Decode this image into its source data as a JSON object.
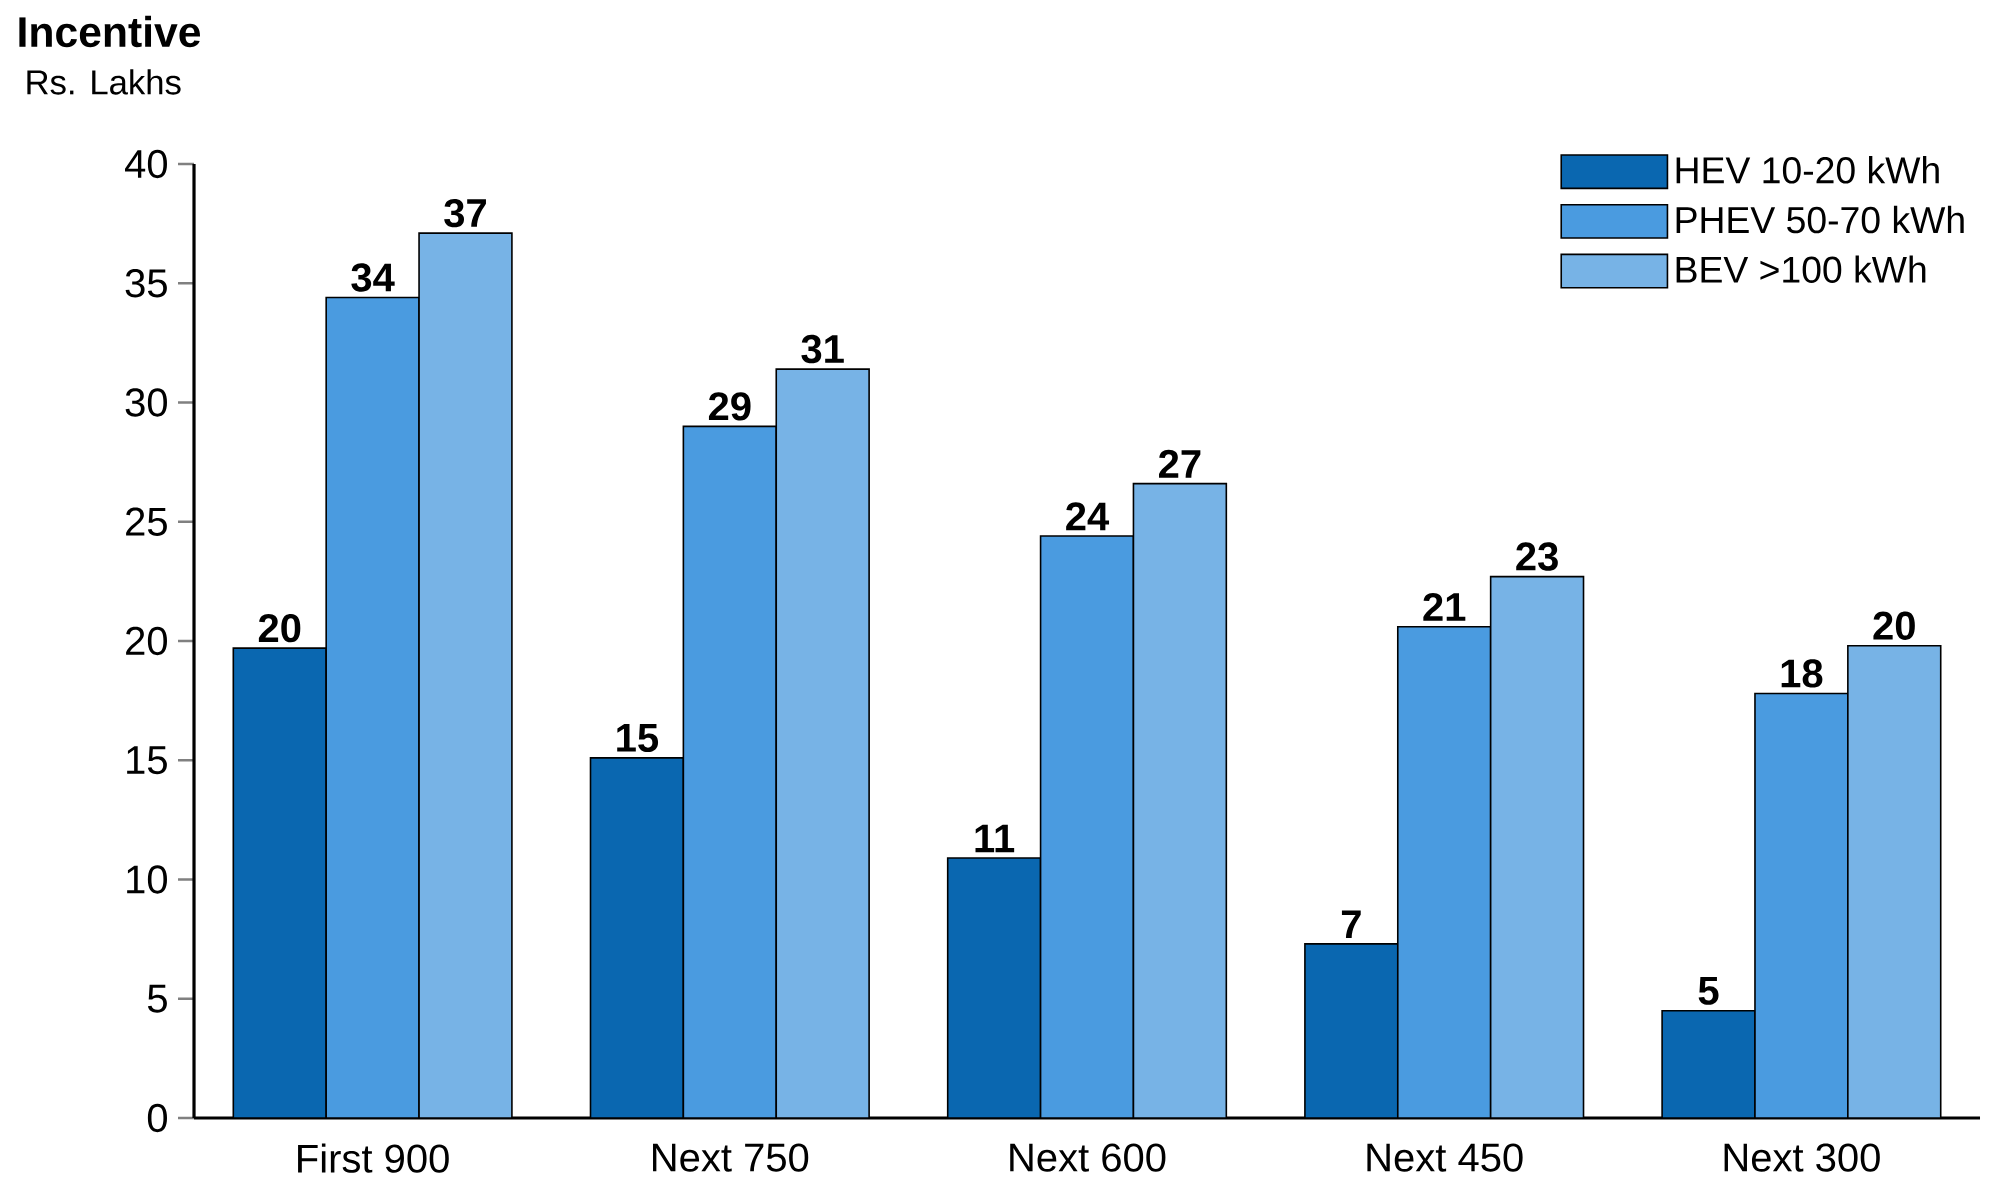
{
  "chart_data": {
    "type": "bar",
    "title": "Incentive",
    "ylabel": "Rs. Lakhs",
    "categories": [
      "First 900",
      "Next 750",
      "Next 600",
      "Next 450",
      "Next 300"
    ],
    "series": [
      {
        "name": "HEV 10-20 kWh",
        "color": "#0a67b0",
        "values": [
          19.7,
          15.1,
          10.9,
          7.3,
          4.5
        ],
        "value_labels": [
          "20",
          "15",
          "11",
          "7",
          "5"
        ]
      },
      {
        "name": "PHEV 50-70 kWh",
        "color": "#4a9be0",
        "values": [
          34.4,
          29.0,
          24.4,
          20.6,
          17.8
        ],
        "value_labels": [
          "34",
          "29",
          "24",
          "21",
          "18"
        ]
      },
      {
        "name": "BEV >100 kWh",
        "color": "#77b3e6",
        "values": [
          37.1,
          31.4,
          26.6,
          22.7,
          19.8
        ],
        "value_labels": [
          "37",
          "31",
          "27",
          "23",
          "20"
        ]
      }
    ],
    "ylim": [
      0,
      40
    ],
    "yticks": [
      0,
      5,
      10,
      15,
      20,
      25,
      30,
      35,
      40
    ],
    "grid": false,
    "legend": "top right"
  }
}
